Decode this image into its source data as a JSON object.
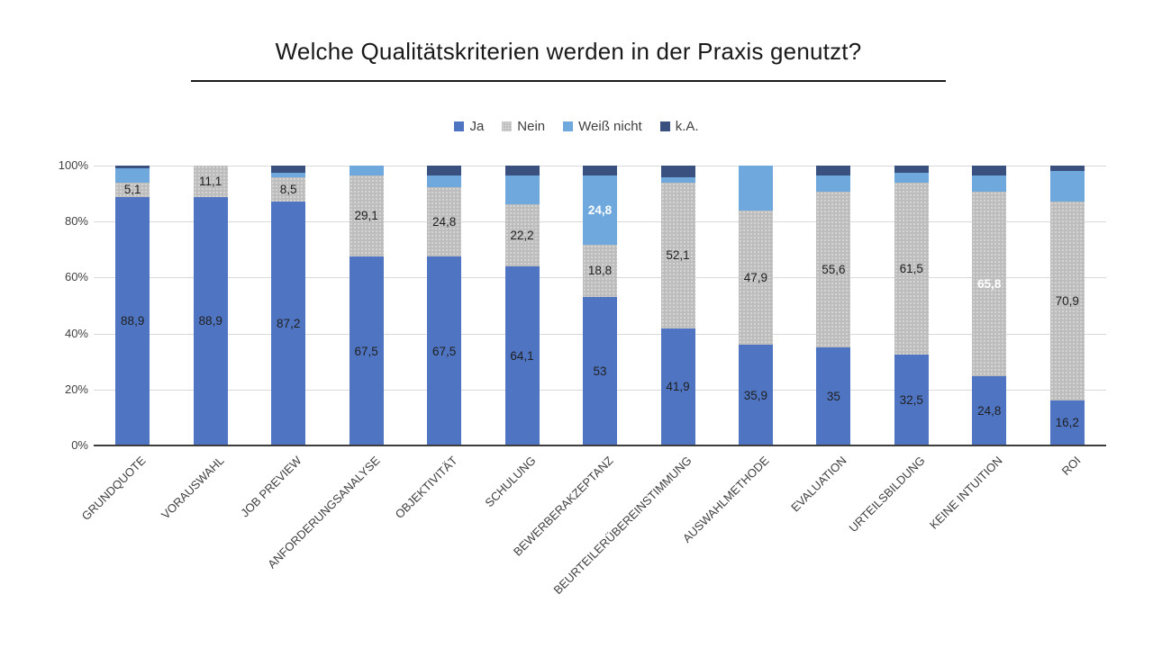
{
  "page": {
    "background": "#ffffff"
  },
  "chart_data": {
    "type": "bar",
    "variant": "stacked-100-percent-column",
    "title": "Welche Qualitätskriterien werden in der Praxis genutzt?",
    "legend": {
      "position": "top",
      "entries": [
        "Ja",
        "Nein",
        "Weiß nicht",
        "k.A."
      ]
    },
    "y_axis": {
      "ticks": [
        "0%",
        "20%",
        "40%",
        "60%",
        "80%",
        "100%"
      ],
      "range": [
        0,
        100
      ],
      "grid": true
    },
    "categories": [
      "GRUNDQUOTE",
      "VORAUSWAHL",
      "JOB PREVIEW",
      "ANFORDERUNGSANALYSE",
      "OBJEKTIVITÄT",
      "SCHULUNG",
      "BEWERBERAKZEPTANZ",
      "BEURTEILERÜBEREINSTIMMUNG",
      "AUSWAHLMETHODE",
      "EVALUATION",
      "URTEILSBILDUNG",
      "KEINE INTUITION",
      "ROI"
    ],
    "series": [
      {
        "name": "Ja",
        "color": "#4F75C2",
        "values": [
          88.9,
          88.9,
          87.2,
          67.5,
          67.5,
          64.1,
          53,
          41.9,
          35.9,
          35,
          32.5,
          24.8,
          16.2
        ],
        "labels": [
          "88,9",
          "88,9",
          "87,2",
          "67,5",
          "67,5",
          "64,1",
          "53",
          "41,9",
          "35,9",
          "35",
          "32,5",
          "24,8",
          "16,2"
        ],
        "white_label_at": []
      },
      {
        "name": "Nein",
        "color": "#BDBDBD",
        "textured": true,
        "values": [
          5.1,
          11.1,
          8.5,
          29.1,
          24.8,
          22.2,
          18.8,
          52.1,
          47.9,
          55.6,
          61.5,
          65.8,
          70.9
        ],
        "labels": [
          "5,1",
          "11,1",
          "8,5",
          "29,1",
          "24,8",
          "22,2",
          "18,8",
          "52,1",
          "47,9",
          "55,6",
          "61,5",
          "65,8",
          "70,9"
        ],
        "white_label_at": [
          11
        ]
      },
      {
        "name": "Weiß nicht",
        "color": "#6FA8DC",
        "values": [
          5.1,
          0,
          1.7,
          3.4,
          4.3,
          10.3,
          24.8,
          1.7,
          16.2,
          6.0,
          3.4,
          6.0,
          11.1
        ],
        "labels": [
          "",
          "",
          "",
          "",
          "",
          "",
          "24,8",
          "",
          "",
          "",
          "",
          "",
          ""
        ],
        "white_label_at": [
          6
        ]
      },
      {
        "name": "k.A.",
        "color": "#3A5180",
        "values": [
          0.9,
          0,
          2.6,
          0,
          3.4,
          3.4,
          3.4,
          4.3,
          0,
          3.4,
          2.6,
          3.4,
          1.7
        ],
        "labels": [
          "",
          "",
          "",
          "",
          "",
          "",
          "",
          "",
          "",
          "",
          "",
          "",
          ""
        ],
        "white_label_at": []
      }
    ],
    "colors": {
      "grid": "#d9d9d9",
      "axis_line": "#3c3c3c",
      "axis_text": "#404040",
      "data_label": "#1f1f1f",
      "title_text": "#1a1a1a"
    }
  }
}
